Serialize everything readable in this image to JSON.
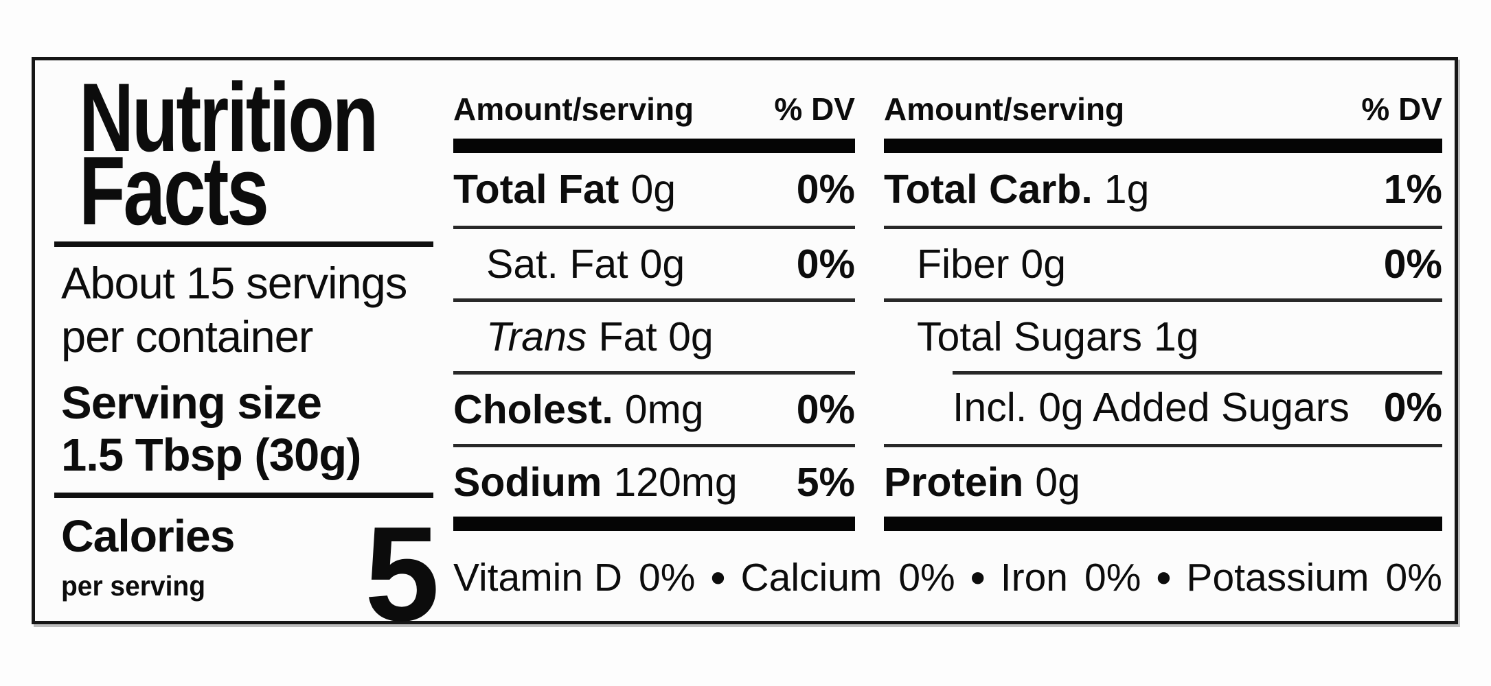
{
  "left": {
    "title_line1": "Nutrition",
    "title_line2": "Facts",
    "servings_line1": "About 15 servings",
    "servings_line2": "per container",
    "serving_size_line1": "Serving size",
    "serving_size_line2": "1.5 Tbsp (30g)",
    "calories_label": "Calories",
    "calories_sublabel": "per serving",
    "calories_value": "5"
  },
  "mid_column": {
    "header_amount": "Amount/serving",
    "header_dv": "% DV",
    "rows": [
      {
        "label": "Total Fat",
        "amount": "0g",
        "dv": "0%"
      },
      {
        "label": "Sat. Fat",
        "amount": "0g",
        "dv": "0%"
      },
      {
        "label": "Trans",
        "amount": "Fat 0g",
        "dv": ""
      },
      {
        "label": "Cholest.",
        "amount": "0mg",
        "dv": "0%"
      },
      {
        "label": "Sodium",
        "amount": "120mg",
        "dv": "5%"
      }
    ]
  },
  "right_column": {
    "header_amount": "Amount/serving",
    "header_dv": "% DV",
    "rows": [
      {
        "label": "Total Carb.",
        "amount": "1g",
        "dv": "1%"
      },
      {
        "label": "Fiber",
        "amount": "0g",
        "dv": "0%"
      },
      {
        "label": "Total Sugars",
        "amount": "1g",
        "dv": ""
      },
      {
        "label": "Incl.",
        "amount": "0g Added Sugars",
        "dv": "0%"
      },
      {
        "label": "Protein",
        "amount": "0g",
        "dv": ""
      }
    ]
  },
  "footer": {
    "separator": "•",
    "items": [
      {
        "name": "Vitamin D",
        "value": "0%"
      },
      {
        "name": "Calcium",
        "value": "0%"
      },
      {
        "name": "Iron",
        "value": "0%"
      },
      {
        "name": "Potassium",
        "value": "0%"
      }
    ]
  }
}
